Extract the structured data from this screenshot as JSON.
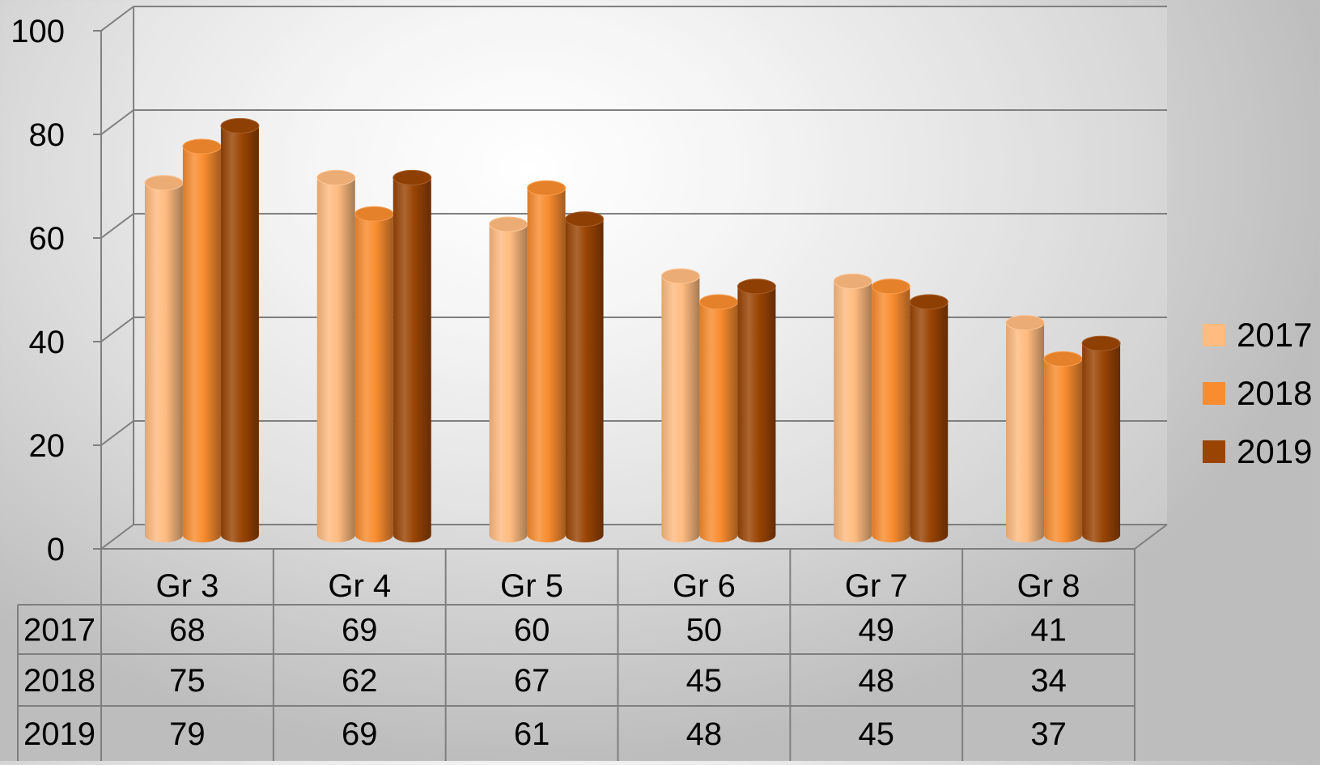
{
  "chart_data": {
    "type": "bar",
    "style": "3d-cylinder",
    "categories": [
      "Gr 3",
      "Gr 4",
      "Gr 5",
      "Gr 6",
      "Gr 7",
      "Gr 8"
    ],
    "series": [
      {
        "name": "2017",
        "values": [
          68,
          69,
          60,
          50,
          49,
          41
        ],
        "color": "#FFBB80"
      },
      {
        "name": "2018",
        "values": [
          75,
          62,
          67,
          45,
          48,
          34
        ],
        "color": "#F98C2F"
      },
      {
        "name": "2019",
        "values": [
          79,
          69,
          61,
          48,
          45,
          37
        ],
        "color": "#9A4404"
      }
    ],
    "y_ticks": [
      "0",
      "20",
      "40",
      "60",
      "80",
      "100"
    ],
    "ylim": [
      0,
      100
    ],
    "grid": true,
    "legend_position": "right",
    "data_table": true
  }
}
